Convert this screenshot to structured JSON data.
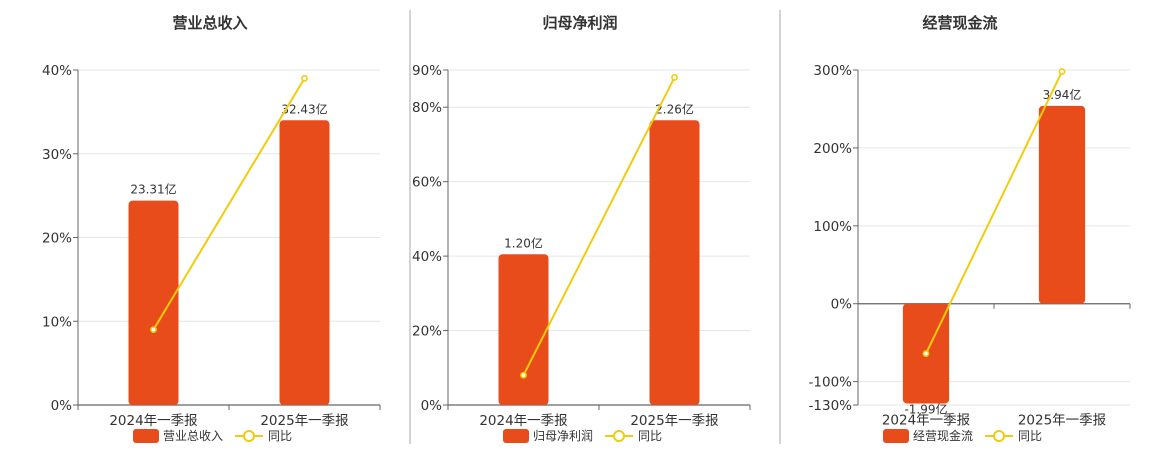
{
  "colors": {
    "bar": "#e84c1a",
    "line": "#f2cc0c",
    "grid": "#e6e6e6",
    "axis": "#666666",
    "divider": "#aaaaaa",
    "text": "#333333"
  },
  "legend_line_label": "同比",
  "chart_data": [
    {
      "type": "bar",
      "title": "营业总收入",
      "categories": [
        "2024年一季报",
        "2025年一季报"
      ],
      "series": [
        {
          "name": "营业总收入",
          "type": "bar",
          "values": [
            23.31,
            32.43
          ],
          "labels": [
            "23.31亿",
            "32.43亿"
          ]
        },
        {
          "name": "同比",
          "type": "line",
          "values": [
            9,
            39
          ]
        }
      ],
      "ylim": [
        0,
        40
      ],
      "yticks": [
        0,
        10,
        20,
        30,
        40
      ],
      "ytick_labels": [
        "0%",
        "10%",
        "20%",
        "30%",
        "40%"
      ],
      "bar_levels_pct": [
        24.4,
        34
      ],
      "grid": true,
      "legend": "bottom-center"
    },
    {
      "type": "bar",
      "title": "归母净利润",
      "categories": [
        "2024年一季报",
        "2025年一季报"
      ],
      "series": [
        {
          "name": "归母净利润",
          "type": "bar",
          "values": [
            1.2,
            2.26
          ],
          "labels": [
            "1.20亿",
            "2.26亿"
          ]
        },
        {
          "name": "同比",
          "type": "line",
          "values": [
            8,
            88
          ]
        }
      ],
      "ylim": [
        0,
        90
      ],
      "yticks": [
        0,
        20,
        40,
        60,
        80,
        90
      ],
      "ytick_labels": [
        "0%",
        "20%",
        "40%",
        "60%",
        "80%",
        "90%"
      ],
      "bar_levels_pct": [
        40.5,
        76.5
      ],
      "grid": true,
      "legend": "bottom-center"
    },
    {
      "type": "bar",
      "title": "经营现金流",
      "categories": [
        "2024年一季报",
        "2025年一季报"
      ],
      "series": [
        {
          "name": "经营现金流",
          "type": "bar",
          "values": [
            -1.99,
            3.94
          ],
          "labels": [
            "-1.99亿",
            "3.94亿"
          ]
        },
        {
          "name": "同比",
          "type": "line",
          "values": [
            -64,
            298
          ]
        }
      ],
      "ylim": [
        -130,
        300
      ],
      "yticks": [
        -130,
        -100,
        0,
        100,
        200,
        300
      ],
      "ytick_labels": [
        "-130%",
        "-100%",
        "0%",
        "100%",
        "200%",
        "300%"
      ],
      "bar_levels_pct": [
        -128,
        254
      ],
      "grid": true,
      "legend": "bottom-center"
    }
  ]
}
